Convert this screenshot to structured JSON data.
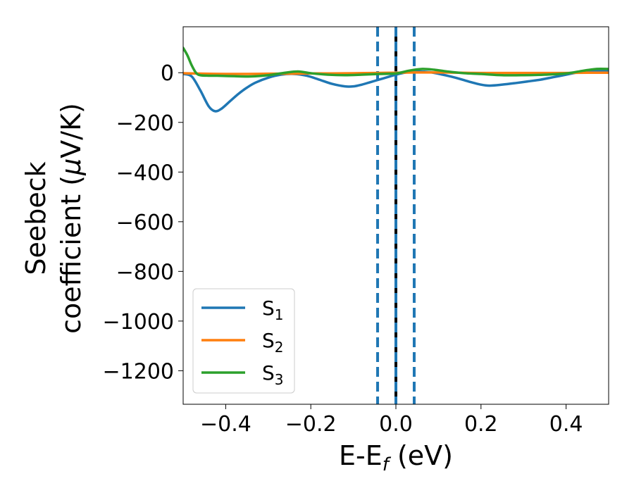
{
  "chart_data": {
    "type": "line",
    "xlabel_main": "E-E",
    "xlabel_sub": "f",
    "xlabel_unit": " (eV)",
    "ylabel_line1": "Seebeck",
    "ylabel_line2_text": "coefficient  (",
    "ylabel_line2_mu": "μ",
    "ylabel_line2_unit": "V/K)",
    "xlim": [
      -0.5,
      0.5
    ],
    "ylim": [
      -1335,
      185
    ],
    "x_ticks": [
      -0.4,
      -0.2,
      0.0,
      0.2,
      0.4
    ],
    "x_tick_labels": [
      "−0.4",
      "−0.2",
      "0.0",
      "0.2",
      "0.4"
    ],
    "y_ticks": [
      0,
      -200,
      -400,
      -600,
      -800,
      -1000,
      -1200
    ],
    "y_tick_labels": [
      "0",
      "−200",
      "−400",
      "−600",
      "−800",
      "−1000",
      "−1200"
    ],
    "vertical_lines": [
      {
        "x": -0.043,
        "color": "#1f77b4",
        "style": "dashed"
      },
      {
        "x": 0.0,
        "color": "#000000",
        "style": "solid"
      },
      {
        "x": 0.0,
        "color": "#1f77b4",
        "style": "dashed"
      },
      {
        "x": 0.043,
        "color": "#1f77b4",
        "style": "dashed"
      }
    ],
    "legend": {
      "placement": "lower-left",
      "entries": [
        {
          "name": "S",
          "sub": "1",
          "color": "#1f77b4"
        },
        {
          "name": "S",
          "sub": "2",
          "color": "#ff7f0e"
        },
        {
          "name": "S",
          "sub": "3",
          "color": "#2ca02c"
        }
      ]
    },
    "series": [
      {
        "name": "S1",
        "color": "#1f77b4",
        "x": [
          -0.5,
          -0.48,
          -0.46,
          -0.44,
          -0.425,
          -0.41,
          -0.39,
          -0.37,
          -0.35,
          -0.33,
          -0.3,
          -0.27,
          -0.24,
          -0.21,
          -0.18,
          -0.15,
          -0.12,
          -0.1,
          -0.08,
          -0.06,
          -0.04,
          -0.02,
          0.0,
          0.02,
          0.05,
          0.08,
          0.11,
          0.14,
          0.17,
          0.2,
          0.22,
          0.25,
          0.28,
          0.31,
          0.34,
          0.37,
          0.4,
          0.43,
          0.46,
          0.5
        ],
        "y": [
          -5,
          -15,
          -70,
          -135,
          -155,
          -145,
          -115,
          -85,
          -60,
          -40,
          -20,
          -8,
          -5,
          -12,
          -28,
          -45,
          -55,
          -55,
          -48,
          -38,
          -28,
          -18,
          -8,
          0,
          5,
          2,
          -8,
          -20,
          -35,
          -48,
          -52,
          -48,
          -42,
          -35,
          -28,
          -18,
          -8,
          2,
          8,
          10
        ]
      },
      {
        "name": "S2",
        "color": "#ff7f0e",
        "x": [
          -0.5,
          -0.45,
          -0.4,
          -0.35,
          -0.3,
          -0.25,
          -0.2,
          -0.15,
          -0.1,
          -0.05,
          0.0,
          0.05,
          0.1,
          0.15,
          0.2,
          0.25,
          0.3,
          0.35,
          0.4,
          0.45,
          0.5
        ],
        "y": [
          -2,
          -4,
          -5,
          -5,
          -4,
          -4,
          -3,
          -3,
          -2,
          -1,
          0,
          1,
          1,
          0,
          -1,
          -1,
          -1,
          -1,
          -1,
          0,
          0
        ]
      },
      {
        "name": "S3",
        "color": "#2ca02c",
        "x": [
          -0.5,
          -0.49,
          -0.48,
          -0.47,
          -0.46,
          -0.44,
          -0.42,
          -0.38,
          -0.34,
          -0.3,
          -0.26,
          -0.23,
          -0.2,
          -0.16,
          -0.12,
          -0.08,
          -0.04,
          0.0,
          0.03,
          0.06,
          0.09,
          0.12,
          0.16,
          0.2,
          0.25,
          0.3,
          0.35,
          0.4,
          0.44,
          0.47,
          0.5
        ],
        "y": [
          100,
          70,
          30,
          0,
          -10,
          -12,
          -12,
          -14,
          -15,
          -10,
          0,
          5,
          -2,
          -8,
          -10,
          -8,
          -5,
          -3,
          8,
          15,
          12,
          5,
          -2,
          -5,
          -10,
          -10,
          -8,
          -3,
          8,
          15,
          15
        ]
      }
    ]
  }
}
